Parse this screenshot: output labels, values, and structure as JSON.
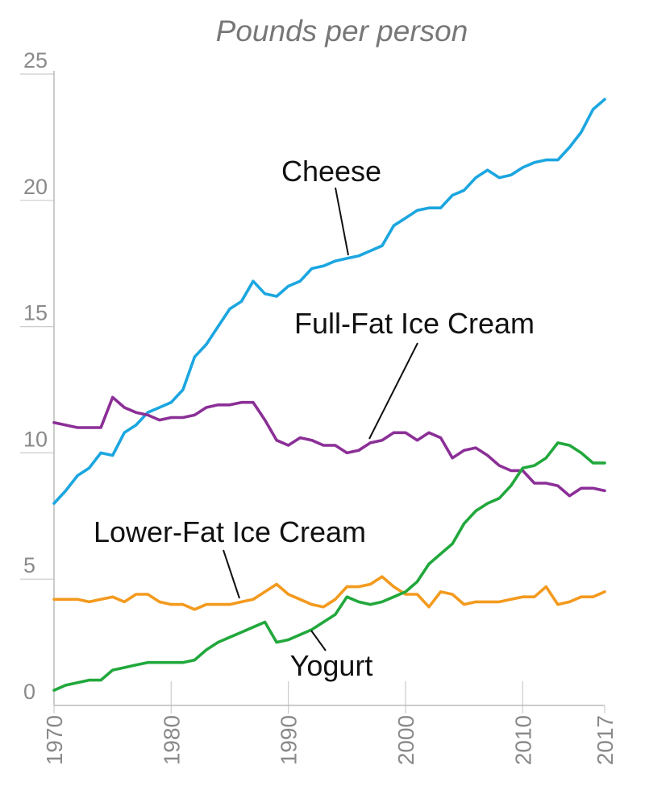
{
  "chart_data": {
    "type": "line",
    "title": "Pounds per person",
    "ylim": [
      0,
      25
    ],
    "yticks": [
      "0",
      "5",
      "10",
      "15",
      "20",
      "25"
    ],
    "xlim": [
      1970,
      2017
    ],
    "xticks": [
      "1970",
      "1980",
      "1990",
      "2000",
      "2010",
      "2017"
    ],
    "x": [
      1970,
      1971,
      1972,
      1973,
      1974,
      1975,
      1976,
      1977,
      1978,
      1979,
      1980,
      1981,
      1982,
      1983,
      1984,
      1985,
      1986,
      1987,
      1988,
      1989,
      1990,
      1991,
      1992,
      1993,
      1994,
      1995,
      1996,
      1997,
      1998,
      1999,
      2000,
      2001,
      2002,
      2003,
      2004,
      2005,
      2006,
      2007,
      2008,
      2009,
      2010,
      2011,
      2012,
      2013,
      2014,
      2015,
      2016,
      2017
    ],
    "series": [
      {
        "name": "Cheese",
        "color": "#1ba6e0",
        "values": [
          8.0,
          8.5,
          9.1,
          9.4,
          10.0,
          9.9,
          10.8,
          11.1,
          11.6,
          11.8,
          12.0,
          12.5,
          13.8,
          14.3,
          15.0,
          15.7,
          16.0,
          16.8,
          16.3,
          16.2,
          16.6,
          16.8,
          17.3,
          17.4,
          17.6,
          17.7,
          17.8,
          18.0,
          18.2,
          19.0,
          19.3,
          19.6,
          19.7,
          19.7,
          20.2,
          20.4,
          20.9,
          21.2,
          20.9,
          21.0,
          21.3,
          21.5,
          21.6,
          21.6,
          22.1,
          22.7,
          23.6,
          24.0
        ]
      },
      {
        "name": "Full-Fat Ice Cream",
        "color": "#8b2f97",
        "values": [
          11.2,
          11.1,
          11.0,
          11.0,
          11.0,
          12.2,
          11.8,
          11.6,
          11.5,
          11.3,
          11.4,
          11.4,
          11.5,
          11.8,
          11.9,
          11.9,
          12.0,
          12.0,
          11.3,
          10.5,
          10.3,
          10.6,
          10.5,
          10.3,
          10.3,
          10.0,
          10.1,
          10.4,
          10.5,
          10.8,
          10.8,
          10.5,
          10.8,
          10.6,
          9.8,
          10.1,
          10.2,
          9.9,
          9.5,
          9.3,
          9.3,
          8.8,
          8.8,
          8.7,
          8.3,
          8.6,
          8.6,
          8.5
        ]
      },
      {
        "name": "Lower-Fat Ice Cream",
        "color": "#f39a1e",
        "values": [
          4.2,
          4.2,
          4.2,
          4.1,
          4.2,
          4.3,
          4.1,
          4.4,
          4.4,
          4.1,
          4.0,
          4.0,
          3.8,
          4.0,
          4.0,
          4.0,
          4.1,
          4.2,
          4.5,
          4.8,
          4.4,
          4.2,
          4.0,
          3.9,
          4.2,
          4.7,
          4.7,
          4.8,
          5.1,
          4.7,
          4.4,
          4.4,
          3.9,
          4.5,
          4.4,
          4.0,
          4.1,
          4.1,
          4.1,
          4.2,
          4.3,
          4.3,
          4.7,
          4.0,
          4.1,
          4.3,
          4.3,
          4.5
        ]
      },
      {
        "name": "Yogurt",
        "color": "#21a83c",
        "values": [
          0.6,
          0.8,
          0.9,
          1.0,
          1.0,
          1.4,
          1.5,
          1.6,
          1.7,
          1.7,
          1.7,
          1.7,
          1.8,
          2.2,
          2.5,
          2.7,
          2.9,
          3.1,
          3.3,
          2.5,
          2.6,
          2.8,
          3.0,
          3.3,
          3.6,
          4.3,
          4.1,
          4.0,
          4.1,
          4.3,
          4.5,
          4.9,
          5.6,
          6.0,
          6.4,
          7.2,
          7.7,
          8.0,
          8.2,
          8.7,
          9.4,
          9.5,
          9.8,
          10.4,
          10.3,
          10.0,
          9.6,
          9.6
        ]
      }
    ],
    "labels": {
      "cheese": "Cheese",
      "full_fat": "Full-Fat Ice Cream",
      "lower_fat": "Lower-Fat Ice Cream",
      "yogurt": "Yogurt"
    }
  }
}
